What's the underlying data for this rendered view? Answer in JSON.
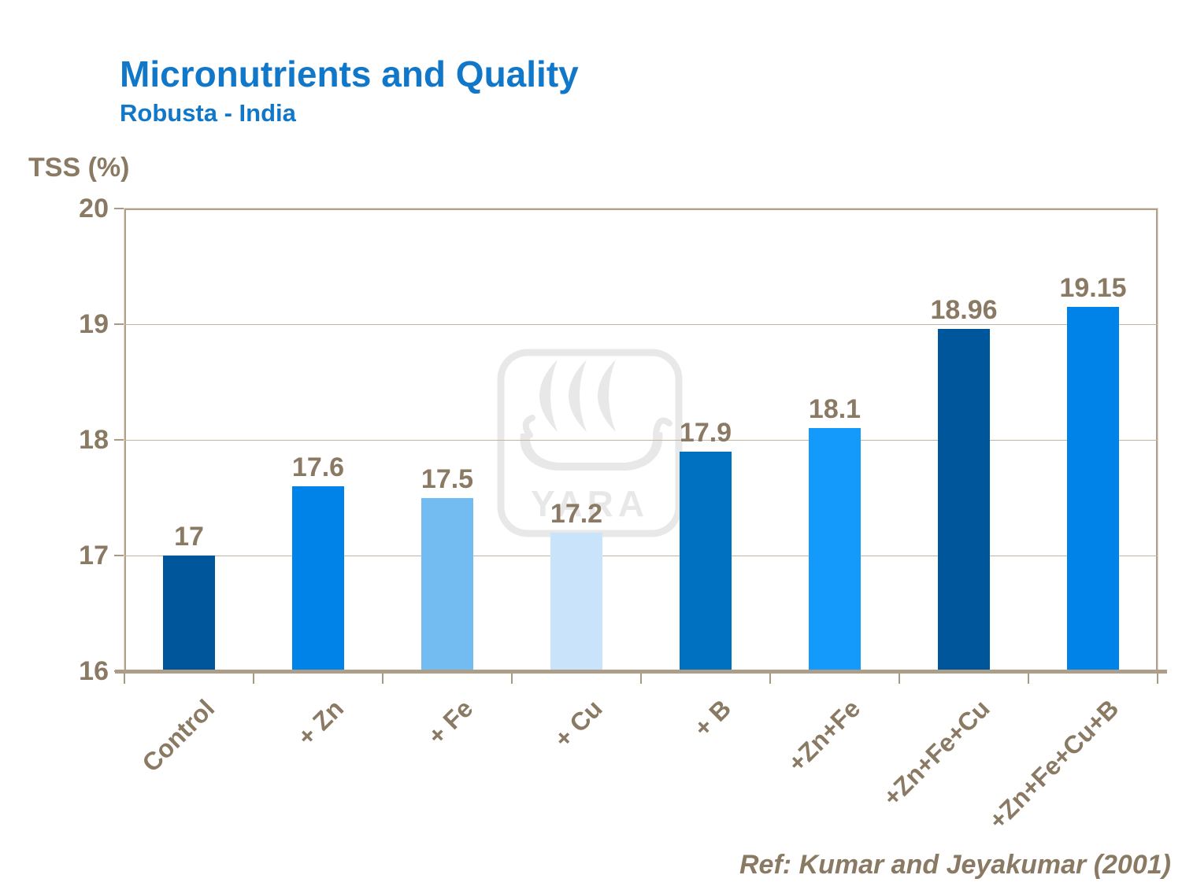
{
  "slide": {
    "title": "Micronutrients and Quality",
    "subtitle": "Robusta - India",
    "reference": "Ref: Kumar and Jeyakumar (2001)",
    "watermark_text": "YARA",
    "colors": {
      "title_blue": "#1177C9",
      "text_brown": "#8A7963",
      "axis_frame_tan": "#B0A18C",
      "gridline_tan": "#C2B5A0",
      "baseline_tan": "#AC9E89",
      "watermark_gray": "#E8E8E8"
    }
  },
  "chart_data": {
    "type": "bar",
    "title": "Micronutrients and Quality",
    "subtitle": "Robusta - India",
    "xlabel": "",
    "ylabel": "TSS (%)",
    "ylim": [
      16,
      20
    ],
    "yticks": [
      16,
      17,
      18,
      19,
      20
    ],
    "grid": "horizontal",
    "legend_position": "none",
    "categories": [
      "Control",
      "+ Zn",
      "+ Fe",
      "+ Cu",
      "+ B",
      "+Zn+Fe",
      "+Zn+Fe+Cu",
      "+Zn+Fe+Cu+B"
    ],
    "values": [
      17,
      17.6,
      17.5,
      17.2,
      17.9,
      18.1,
      18.96,
      19.15
    ],
    "value_labels": [
      "17",
      "17.6",
      "17.5",
      "17.2",
      "17.9",
      "18.1",
      "18.96",
      "19.15"
    ],
    "bar_colors": [
      "#00569B",
      "#0083E8",
      "#72BCF2",
      "#C9E3FA",
      "#0070C0",
      "#149AFB",
      "#00569B",
      "#0083E8"
    ],
    "annotation": "Ref: Kumar and Jeyakumar (2001)"
  }
}
